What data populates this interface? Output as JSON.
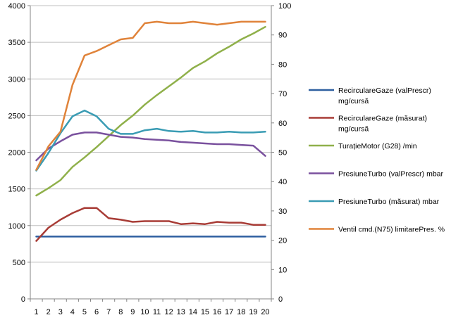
{
  "chart_data": {
    "type": "line",
    "x": [
      1,
      2,
      3,
      4,
      5,
      6,
      7,
      8,
      9,
      10,
      11,
      12,
      13,
      14,
      15,
      16,
      17,
      18,
      19,
      20
    ],
    "left_axis": {
      "min": 0,
      "max": 4000,
      "step": 500,
      "ticks": [
        "0",
        "500",
        "1000",
        "1500",
        "2000",
        "2500",
        "3000",
        "3500",
        "4000"
      ]
    },
    "right_axis": {
      "min": 0,
      "max": 100,
      "step": 10,
      "ticks": [
        "0",
        "10",
        "20",
        "30",
        "40",
        "50",
        "60",
        "70",
        "80",
        "90",
        "100"
      ]
    },
    "x_ticks": [
      "1",
      "2",
      "3",
      "4",
      "5",
      "6",
      "7",
      "8",
      "9",
      "10",
      "11",
      "12",
      "13",
      "14",
      "15",
      "16",
      "17",
      "18",
      "19",
      "20"
    ],
    "grid": "horizontal",
    "legend_position": "right",
    "series": [
      {
        "name": "RecirculareGaze (valPrescr)",
        "unit": "mg/cursă",
        "axis": "left",
        "color": "#2e5fa0",
        "values": [
          850,
          850,
          850,
          850,
          850,
          850,
          850,
          850,
          850,
          850,
          850,
          850,
          850,
          850,
          850,
          850,
          850,
          850,
          850,
          850
        ]
      },
      {
        "name": "RecirculareGaze (măsurat)",
        "unit": "mg/cursă",
        "axis": "left",
        "color": "#a83c36",
        "values": [
          790,
          970,
          1080,
          1170,
          1240,
          1240,
          1100,
          1080,
          1050,
          1060,
          1060,
          1060,
          1020,
          1030,
          1020,
          1050,
          1040,
          1040,
          1010,
          1010
        ]
      },
      {
        "name": "TurațieMotor (G28)",
        "unit": "/min",
        "axis": "left",
        "color": "#8fb04a",
        "values": [
          1410,
          1510,
          1620,
          1800,
          1930,
          2070,
          2220,
          2370,
          2500,
          2650,
          2780,
          2900,
          3020,
          3150,
          3240,
          3350,
          3440,
          3540,
          3620,
          3710
        ]
      },
      {
        "name": "PresiuneTurbo (valPrescr)",
        "unit": "mbar",
        "axis": "left",
        "color": "#7a519e",
        "values": [
          1890,
          2050,
          2150,
          2240,
          2270,
          2270,
          2240,
          2210,
          2200,
          2180,
          2170,
          2160,
          2140,
          2130,
          2120,
          2110,
          2110,
          2100,
          2090,
          1950
        ]
      },
      {
        "name": "PresiuneTurbo (măsurat)",
        "unit": "mbar",
        "axis": "left",
        "color": "#3a9cb4",
        "values": [
          1750,
          1990,
          2260,
          2490,
          2570,
          2490,
          2320,
          2250,
          2250,
          2300,
          2320,
          2290,
          2280,
          2290,
          2270,
          2270,
          2280,
          2270,
          2270,
          2280
        ]
      },
      {
        "name": "Ventil cmd.(N75) limitarePres.",
        "unit": "%",
        "axis": "right",
        "color": "#e0833a",
        "values": [
          44,
          52,
          57,
          73,
          83,
          84.5,
          86.5,
          88.5,
          89,
          94,
          94.5,
          94,
          94,
          94.5,
          94,
          93.5,
          94,
          94.5,
          94.5,
          94.5
        ]
      }
    ]
  }
}
